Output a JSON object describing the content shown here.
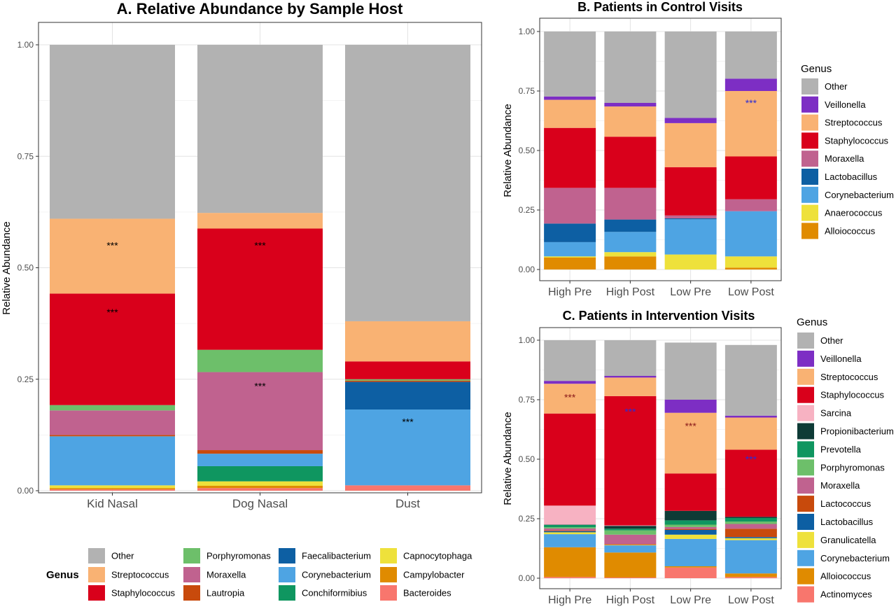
{
  "chart_data": [
    {
      "panel": "A",
      "type": "bar",
      "stacked": true,
      "title": "A. Relative Abundance by Sample Host",
      "xlabel": "",
      "ylabel": "Relative Abundance",
      "ylim": [
        0,
        1
      ],
      "yticks": [
        "0.00",
        "0.25",
        "0.50",
        "0.75",
        "1.00"
      ],
      "categories": [
        "Kid Nasal",
        "Dog Nasal",
        "Dust"
      ],
      "legend": {
        "title": "Genus",
        "position": "bottom"
      },
      "series": [
        {
          "name": "Bacteroides",
          "color": "#F8766D",
          "values": [
            0.003,
            0.006,
            0.012
          ]
        },
        {
          "name": "Campylobacter",
          "color": "#E08B00",
          "values": [
            0.003,
            0.005,
            0.0
          ]
        },
        {
          "name": "Capnocytophaga",
          "color": "#EEE13B",
          "values": [
            0.006,
            0.01,
            0.0
          ]
        },
        {
          "name": "Conchiformibius",
          "color": "#0F9660",
          "values": [
            0.0,
            0.034,
            0.0
          ]
        },
        {
          "name": "Corynebacterium",
          "color": "#4EA4E3",
          "values": [
            0.11,
            0.028,
            0.17
          ]
        },
        {
          "name": "Faecalibacterium",
          "color": "#0D5FA3",
          "values": [
            0.0,
            0.0,
            0.062
          ]
        },
        {
          "name": "Lautropia",
          "color": "#C84A0C",
          "values": [
            0.003,
            0.008,
            0.003
          ]
        },
        {
          "name": "Moraxella",
          "color": "#C0628F",
          "values": [
            0.055,
            0.175,
            0.0
          ]
        },
        {
          "name": "Porphyromonas",
          "color": "#6DBF6A",
          "values": [
            0.012,
            0.05,
            0.003
          ]
        },
        {
          "name": "Staphylococcus",
          "color": "#D9001B",
          "values": [
            0.25,
            0.272,
            0.04
          ]
        },
        {
          "name": "Streptococcus",
          "color": "#F9B273",
          "values": [
            0.168,
            0.035,
            0.09
          ]
        },
        {
          "name": "Other",
          "color": "#B2B2B2",
          "values": [
            0.39,
            0.377,
            0.62
          ]
        }
      ],
      "annotations": [
        {
          "text": "***",
          "category": "Kid Nasal",
          "y": 0.55,
          "color": "#000000"
        },
        {
          "text": "***",
          "category": "Kid Nasal",
          "y": 0.4,
          "color": "#000000"
        },
        {
          "text": "***",
          "category": "Dog Nasal",
          "y": 0.55,
          "color": "#000000"
        },
        {
          "text": "***",
          "category": "Dog Nasal",
          "y": 0.235,
          "color": "#000000"
        },
        {
          "text": "***",
          "category": "Dust",
          "y": 0.155,
          "color": "#000000"
        }
      ]
    },
    {
      "panel": "B",
      "type": "bar",
      "stacked": true,
      "title": "B. Patients in Control Visits",
      "xlabel": "",
      "ylabel": "Relative Abundance",
      "ylim": [
        0,
        1
      ],
      "yticks": [
        "0.00",
        "0.25",
        "0.50",
        "0.75",
        "1.00"
      ],
      "categories": [
        "High Pre",
        "High Post",
        "Low Pre",
        "Low Post"
      ],
      "legend": {
        "title": "Genus",
        "position": "right"
      },
      "series": [
        {
          "name": "Alloiococcus",
          "color": "#E08B00",
          "values": [
            0.05,
            0.055,
            0.0,
            0.008
          ]
        },
        {
          "name": "Anaerococcus",
          "color": "#EEE13B",
          "values": [
            0.005,
            0.018,
            0.063,
            0.047
          ]
        },
        {
          "name": "Corynebacterium",
          "color": "#4EA4E3",
          "values": [
            0.06,
            0.085,
            0.148,
            0.19
          ]
        },
        {
          "name": "Lactobacillus",
          "color": "#0D5FA3",
          "values": [
            0.078,
            0.052,
            0.004,
            0.0
          ]
        },
        {
          "name": "Moraxella",
          "color": "#C0628F",
          "values": [
            0.15,
            0.133,
            0.012,
            0.05
          ]
        },
        {
          "name": "Staphylococcus",
          "color": "#D9001B",
          "values": [
            0.252,
            0.215,
            0.203,
            0.18
          ]
        },
        {
          "name": "Streptococcus",
          "color": "#F9B273",
          "values": [
            0.118,
            0.127,
            0.185,
            0.275
          ]
        },
        {
          "name": "Veillonella",
          "color": "#7D2EC4",
          "values": [
            0.014,
            0.015,
            0.022,
            0.052
          ]
        },
        {
          "name": "Other",
          "color": "#B2B2B2",
          "values": [
            0.273,
            0.3,
            0.363,
            0.198
          ]
        }
      ],
      "annotations": [
        {
          "text": "***",
          "category": "Low Post",
          "y": 0.7,
          "color": "#2B2BD4"
        }
      ]
    },
    {
      "panel": "C",
      "type": "bar",
      "stacked": true,
      "title": "C. Patients in Intervention Visits",
      "xlabel": "",
      "ylabel": "Relative Abundance",
      "ylim": [
        0,
        1
      ],
      "yticks": [
        "0.00",
        "0.25",
        "0.50",
        "0.75",
        "1.00"
      ],
      "categories": [
        "High Pre",
        "High Post",
        "Low Pre",
        "Low Post"
      ],
      "legend": {
        "title": "Genus",
        "position": "right"
      },
      "series": [
        {
          "name": "Actinomyces",
          "color": "#F8766D",
          "values": [
            0.005,
            0.003,
            0.045,
            0.005
          ]
        },
        {
          "name": "Alloiococcus",
          "color": "#E08B00",
          "values": [
            0.125,
            0.105,
            0.005,
            0.015
          ]
        },
        {
          "name": "Corynebacterium",
          "color": "#4EA4E3",
          "values": [
            0.055,
            0.03,
            0.115,
            0.14
          ]
        },
        {
          "name": "Granulicatella",
          "color": "#EEE13B",
          "values": [
            0.008,
            0.002,
            0.018,
            0.008
          ]
        },
        {
          "name": "Lactobacillus",
          "color": "#0D5FA3",
          "values": [
            0.005,
            0.0,
            0.02,
            0.005
          ]
        },
        {
          "name": "Lactococcus",
          "color": "#C84A0C",
          "values": [
            0.003,
            0.003,
            0.004,
            0.035
          ]
        },
        {
          "name": "Moraxella",
          "color": "#C0628F",
          "values": [
            0.008,
            0.04,
            0.008,
            0.02
          ]
        },
        {
          "name": "Porphyromonas",
          "color": "#6DBF6A",
          "values": [
            0.005,
            0.018,
            0.01,
            0.01
          ]
        },
        {
          "name": "Prevotella",
          "color": "#0F9660",
          "values": [
            0.01,
            0.007,
            0.018,
            0.015
          ]
        },
        {
          "name": "Propionibacterium",
          "color": "#0E3B36",
          "values": [
            0.001,
            0.012,
            0.04,
            0.005
          ]
        },
        {
          "name": "Sarcina",
          "color": "#F7B2C2",
          "values": [
            0.08,
            0.002,
            0.0,
            0.0
          ]
        },
        {
          "name": "Staphylococcus",
          "color": "#D9001B",
          "values": [
            0.387,
            0.543,
            0.157,
            0.282
          ]
        },
        {
          "name": "Streptococcus",
          "color": "#F9B273",
          "values": [
            0.125,
            0.078,
            0.255,
            0.135
          ]
        },
        {
          "name": "Veillonella",
          "color": "#7D2EC4",
          "values": [
            0.012,
            0.007,
            0.055,
            0.008
          ]
        },
        {
          "name": "Other",
          "color": "#B2B2B2",
          "values": [
            0.171,
            0.15,
            0.24,
            0.297
          ]
        }
      ],
      "annotations": [
        {
          "text": "***",
          "category": "High Pre",
          "y": 0.76,
          "color": "#8B1A1A"
        },
        {
          "text": "***",
          "category": "High Post",
          "y": 0.7,
          "color": "#2B2BD4"
        },
        {
          "text": "***",
          "category": "Low Pre",
          "y": 0.64,
          "color": "#8B1A1A"
        },
        {
          "text": "***",
          "category": "Low Post",
          "y": 0.5,
          "color": "#2B2BD4"
        }
      ]
    }
  ]
}
